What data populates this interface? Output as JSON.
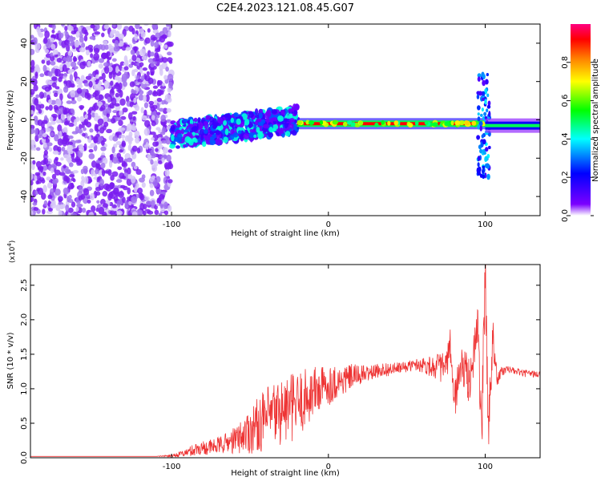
{
  "figure_title": "C2E4.2023.121.08.45.G07",
  "colors": {
    "snr_line": "#ee3333",
    "colormap": [
      "#ffffff",
      "#7b00ff",
      "#0000ff",
      "#00ffff",
      "#00ff00",
      "#ffff00",
      "#ff8000",
      "#ff0000",
      "#ff0080"
    ]
  },
  "chart_data": [
    {
      "type": "heatmap",
      "title": "",
      "xlabel": "Height of straight line (km)",
      "ylabel": "Frequency (Hz)",
      "xlim": [
        -190,
        135
      ],
      "ylim": [
        -50,
        50
      ],
      "xticks": [
        -100,
        0,
        100
      ],
      "xtick_labels": [
        "-100",
        "0",
        "100"
      ],
      "yticks": [
        -40,
        -20,
        0,
        20,
        40
      ],
      "ytick_labels": [
        "-40",
        "-20",
        "0",
        "20",
        "40"
      ],
      "colorbar": {
        "label": "Normalized spectral amplitude",
        "range": [
          0,
          1
        ],
        "ticks": [
          0.0,
          0.2,
          0.4,
          0.6,
          0.8
        ],
        "tick_labels": [
          "0.0",
          "0.2",
          "0.4",
          "0.6",
          "0.8"
        ]
      },
      "features": [
        {
          "x_range": [
            -190,
            -100
          ],
          "freq_range": [
            -50,
            50
          ],
          "amplitude": 0.1,
          "description_kind": "scattered noise"
        },
        {
          "x_range": [
            -100,
            -20
          ],
          "freq_range": [
            -15,
            10
          ],
          "amplitude": 0.35,
          "description_kind": "noisy band"
        },
        {
          "x_range": [
            -20,
            100
          ],
          "freq_center": -2,
          "amplitude": 0.9,
          "description_kind": "strong line"
        },
        {
          "x_range": [
            100,
            135
          ],
          "freq_center": -3,
          "amplitude": 0.5,
          "description_kind": "line"
        }
      ]
    },
    {
      "type": "line",
      "title": "",
      "xlabel": "Height of straight line (km)",
      "ylabel": "SNR (10 * v/v)",
      "y_multiplier_label": "(x10",
      "y_multiplier_exp": "4",
      "xlim": [
        -190,
        135
      ],
      "ylim": [
        0,
        2.8
      ],
      "xticks": [
        -100,
        0,
        100
      ],
      "xtick_labels": [
        "-100",
        "0",
        "100"
      ],
      "yticks": [
        0.0,
        0.5,
        1.0,
        1.5,
        2.0,
        2.5
      ],
      "ytick_labels": [
        "0.0",
        "0.5",
        "1.0",
        "1.5",
        "2.0",
        "2.5"
      ],
      "series": [
        {
          "x": [
            -190,
            -150,
            -110,
            -100,
            -95,
            -90,
            -85,
            -80,
            -75,
            -70,
            -65,
            -60,
            -55,
            -50,
            -45,
            -40,
            -35,
            -30,
            -25,
            -20,
            -15,
            -10,
            -5,
            0,
            5,
            10,
            15,
            20,
            25,
            30,
            35,
            40,
            45,
            50,
            55,
            60,
            65,
            70,
            75,
            78,
            80,
            85,
            90,
            95,
            98,
            100,
            102,
            105,
            108,
            110,
            115,
            120,
            125,
            130,
            135
          ],
          "values": [
            0.02,
            0.02,
            0.02,
            0.03,
            0.05,
            0.08,
            0.12,
            0.15,
            0.15,
            0.18,
            0.22,
            0.25,
            0.32,
            0.4,
            0.48,
            0.55,
            0.62,
            0.68,
            0.72,
            0.75,
            0.85,
            0.95,
            1.0,
            1.05,
            1.1,
            1.12,
            1.18,
            1.2,
            1.22,
            1.25,
            1.28,
            1.28,
            1.3,
            1.32,
            1.35,
            1.35,
            1.33,
            1.32,
            1.3,
            1.6,
            0.8,
            1.35,
            1.1,
            1.9,
            0.5,
            2.75,
            0.4,
            1.8,
            1.1,
            1.25,
            1.28,
            1.25,
            1.22,
            1.22,
            1.2
          ],
          "noise_amplitude": [
            0.0,
            0.0,
            0.0,
            0.02,
            0.04,
            0.06,
            0.1,
            0.1,
            0.12,
            0.12,
            0.15,
            0.2,
            0.25,
            0.35,
            0.4,
            0.45,
            0.5,
            0.5,
            0.5,
            0.5,
            0.45,
            0.4,
            0.35,
            0.3,
            0.25,
            0.22,
            0.18,
            0.15,
            0.12,
            0.1,
            0.1,
            0.1,
            0.08,
            0.08,
            0.08,
            0.12,
            0.15,
            0.2,
            0.25,
            0.3,
            0.3,
            0.3,
            0.35,
            0.4,
            0.5,
            0.5,
            0.5,
            0.3,
            0.15,
            0.08,
            0.05,
            0.05,
            0.05,
            0.05,
            0.05
          ]
        }
      ]
    }
  ]
}
